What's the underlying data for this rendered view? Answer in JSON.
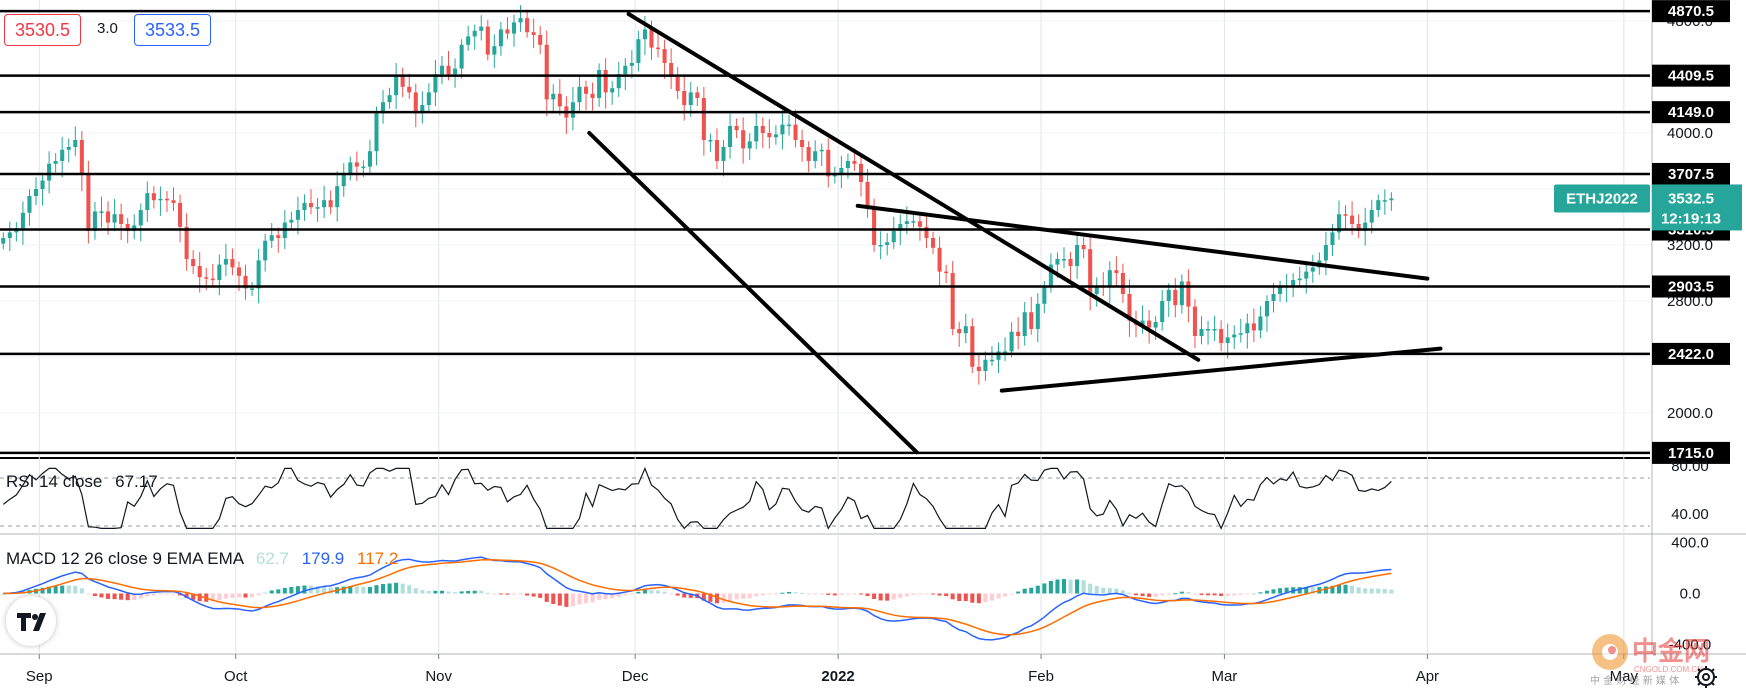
{
  "header": {
    "bid": "3530.5",
    "spread": "3.0",
    "ask": "3533.5"
  },
  "chart_data": [
    {
      "type": "candlestick",
      "symbol": "ETHJ2022",
      "last_price": "3532.5",
      "countdown": "12:19:13",
      "y_axis": {
        "scale": "linear",
        "range": [
          1700,
          4950
        ],
        "ticks": [
          "2000.0",
          "2400.0",
          "2800.0",
          "3200.0",
          "3600.0",
          "4000.0",
          "4400.0",
          "4800.0"
        ]
      },
      "x_axis": {
        "range": [
          "2021-08-26",
          "2022-05-05"
        ],
        "ticks": [
          {
            "date": "2021-09-01",
            "label": "Sep"
          },
          {
            "date": "2021-10-01",
            "label": "Oct"
          },
          {
            "date": "2021-11-01",
            "label": "Nov"
          },
          {
            "date": "2021-12-01",
            "label": "Dec"
          },
          {
            "date": "2022-01-01",
            "label": "2022"
          },
          {
            "date": "2022-02-01",
            "label": "Feb"
          },
          {
            "date": "2022-03-01",
            "label": "Mar"
          },
          {
            "date": "2022-04-01",
            "label": "Apr"
          },
          {
            "date": "2022-05-01",
            "label": "May"
          }
        ]
      },
      "horizontal_levels": [
        "4870.5",
        "4409.5",
        "4149.0",
        "3707.5",
        "3310.5",
        "2903.5",
        "2422.0",
        "1715.0"
      ],
      "trendlines": [
        {
          "from": [
            "2021-11-30",
            4850
          ],
          "to": [
            "2022-02-25",
            2380
          ]
        },
        {
          "from": [
            "2021-11-24",
            4000
          ],
          "to": [
            "2022-01-13",
            1720
          ]
        },
        {
          "from": [
            "2022-01-04",
            3480
          ],
          "to": [
            "2022-04-01",
            2960
          ]
        },
        {
          "from": [
            "2022-01-26",
            2160
          ],
          "to": [
            "2022-04-03",
            2460
          ]
        }
      ],
      "candles_daily_close": [
        3250,
        3290,
        3320,
        3430,
        3550,
        3600,
        3660,
        3780,
        3800,
        3880,
        3900,
        3950,
        3700,
        3300,
        3440,
        3440,
        3360,
        3420,
        3350,
        3300,
        3340,
        3450,
        3570,
        3520,
        3530,
        3520,
        3500,
        3330,
        3100,
        3050,
        2970,
        2960,
        2950,
        3060,
        3100,
        3040,
        2980,
        2890,
        2890,
        3090,
        3230,
        3270,
        3250,
        3360,
        3380,
        3450,
        3500,
        3470,
        3470,
        3520,
        3470,
        3620,
        3710,
        3790,
        3760,
        3760,
        3870,
        4140,
        4220,
        4270,
        4410,
        4330,
        4290,
        4140,
        4200,
        4290,
        4420,
        4480,
        4420,
        4460,
        4630,
        4690,
        4730,
        4760,
        4560,
        4620,
        4740,
        4710,
        4790,
        4820,
        4720,
        4700,
        4630,
        4240,
        4280,
        4190,
        4110,
        4220,
        4330,
        4280,
        4250,
        4450,
        4290,
        4320,
        4420,
        4480,
        4500,
        4670,
        4740,
        4610,
        4600,
        4500,
        4400,
        4300,
        4200,
        4290,
        4250,
        3950,
        3950,
        3800,
        3900,
        4050,
        4020,
        3890,
        3940,
        4050,
        4000,
        3970,
        3990,
        4060,
        4060,
        3950,
        3900,
        3800,
        3870,
        3880,
        3690,
        3710,
        3750,
        3800,
        3780,
        3650,
        3470,
        3200,
        3200,
        3220,
        3300,
        3350,
        3370,
        3370,
        3330,
        3250,
        3180,
        3010,
        3000,
        2600,
        2570,
        2620,
        2330,
        2300,
        2380,
        2380,
        2440,
        2440,
        2580,
        2550,
        2720,
        2600,
        2780,
        2900,
        3060,
        3100,
        3100,
        3050,
        3200,
        3170,
        2850,
        2910,
        2900,
        3020,
        3000,
        2850,
        2660,
        2630,
        2660,
        2610,
        2650,
        2800,
        2880,
        2770,
        2940,
        2760,
        2550,
        2600,
        2600,
        2600,
        2500,
        2540,
        2560,
        2570,
        2640,
        2590,
        2690,
        2800,
        2850,
        2900,
        2910,
        2950,
        2960,
        3010,
        3040,
        3090,
        3200,
        3290,
        3420,
        3410,
        3350,
        3300,
        3360,
        3450,
        3520,
        3520,
        3532.5
      ]
    },
    {
      "type": "line",
      "name": "RSI 14 close",
      "value": "67.17",
      "y_axis": {
        "range": [
          25,
          85
        ],
        "ticks": [
          "40.00",
          "80.00"
        ]
      },
      "bands": [
        70,
        30
      ]
    },
    {
      "type": "macd",
      "name": "MACD 12 26 close 9 EMA EMA",
      "values": [
        "62.7",
        "179.9",
        "117.2"
      ],
      "y_axis": {
        "range": [
          -460,
          460
        ],
        "ticks": [
          "-400.0",
          "0.0",
          "400.0"
        ]
      },
      "series": [
        {
          "name": "histogram"
        },
        {
          "name": "macd"
        },
        {
          "name": "signal"
        }
      ]
    }
  ],
  "colors": {
    "up": "#26a69a",
    "down": "#ef5350",
    "hist_up_light": "#b2dfdb",
    "hist_down_light": "#ffcdd2",
    "macd": "#2962ff",
    "signal": "#ff6d00",
    "level_line": "#000000",
    "label_bg": "#000000",
    "symbol_bg": "#26a69a",
    "macd_hist_legend": "#b2dfdb"
  },
  "watermark": {
    "text": "中金网",
    "subtext": "CNGOLD.COM.CN",
    "cn_sub": "中 金 财 经 新 媒 体"
  },
  "icons": [
    "tradingview-logo-icon",
    "settings-gear-icon"
  ]
}
